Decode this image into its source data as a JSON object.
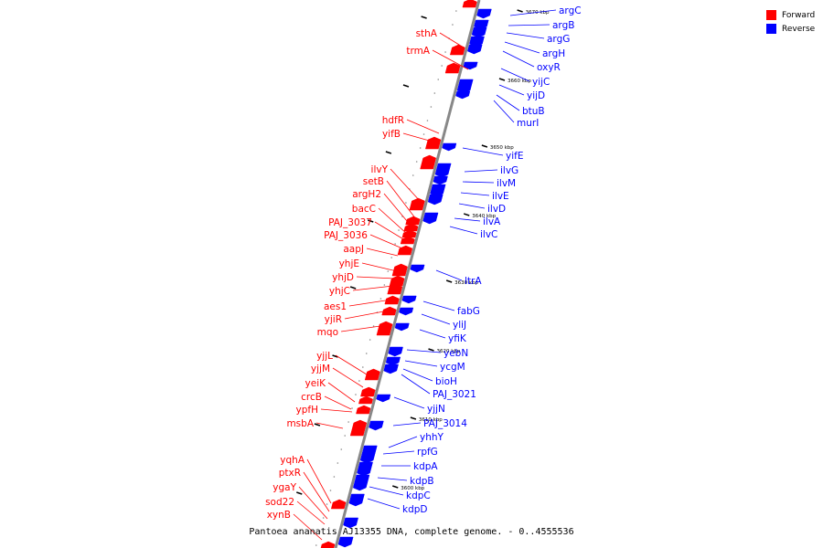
{
  "caption": "Pantoea ananatis AJ13355 DNA, complete genome. - 0..4555536",
  "legend": {
    "items": [
      {
        "label": "Forward",
        "color": "#ff0000"
      },
      {
        "label": "Reverse",
        "color": "#0000ff"
      }
    ]
  },
  "colors": {
    "forward": "#ff0000",
    "reverse": "#0000ff",
    "axis": "#888888"
  },
  "ticks": [
    "3670 kbp",
    "3660 kbp",
    "3650 kbp",
    "3640 kbp",
    "3630 kbp",
    "3620 kbp",
    "3610 kbp",
    "3600 kbp"
  ],
  "forward_genes": [
    "sthA",
    "trmA",
    "hdfR",
    "yifB",
    "ilvY",
    "setB",
    "argH2",
    "bacC",
    "PAJ_3037",
    "PAJ_3036",
    "aapJ",
    "yhjE",
    "yhjD",
    "yhjC",
    "aes1",
    "yjiR",
    "mqo",
    "yjjL",
    "yjjM",
    "yeiK",
    "crcB",
    "ypfH",
    "msbA",
    "yqhA",
    "ptxR",
    "ygaY",
    "sod22",
    "xynB"
  ],
  "reverse_genes": [
    "argC",
    "argB",
    "argG",
    "argH",
    "oxyR",
    "yijC",
    "yijD",
    "btuB",
    "murI",
    "yifE",
    "ilvG",
    "ilvM",
    "ilvE",
    "ilvD",
    "ilvA",
    "ilvC",
    "ltrA",
    "fabG",
    "yliJ",
    "yfiK",
    "yebN",
    "ycgM",
    "bioH",
    "PAJ_3021",
    "yjjN",
    "PAJ_3014",
    "yhhY",
    "rpfG",
    "kdpA",
    "kdpB",
    "kdpC",
    "kdpD"
  ]
}
